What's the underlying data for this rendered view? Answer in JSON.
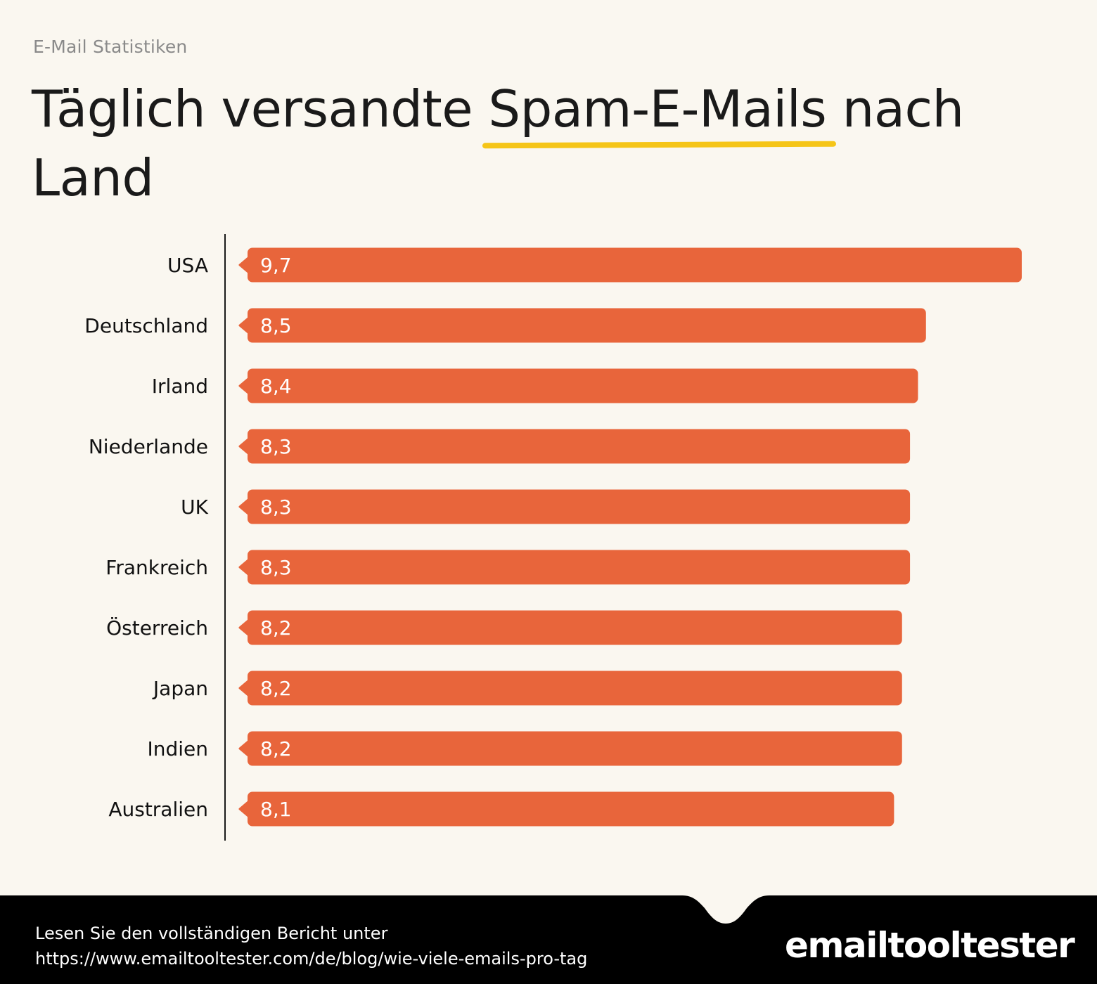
{
  "kicker": "E-Mail Statistiken",
  "title": {
    "before": "Täglich versandte ",
    "highlight": "Spam-E-Mails",
    "after": " nach Land"
  },
  "colors": {
    "background": "#faf7f0",
    "bar": "#e8653b",
    "underline": "#f5c518",
    "footer": "#000000",
    "axis": "#1a1a1a"
  },
  "chart_data": {
    "type": "bar",
    "orientation": "horizontal",
    "title": "Täglich versandte Spam-E-Mails nach Land",
    "xlabel": "",
    "ylabel": "",
    "xlim": [
      0,
      9.7
    ],
    "grid": false,
    "categories": [
      "USA",
      "Deutschland",
      "Irland",
      "Niederlande",
      "UK",
      "Frankreich",
      "Österreich",
      "Japan",
      "Indien",
      "Australien"
    ],
    "values": [
      9.7,
      8.5,
      8.4,
      8.3,
      8.3,
      8.3,
      8.2,
      8.2,
      8.2,
      8.1
    ],
    "value_labels": [
      "9,7",
      "8,5",
      "8,4",
      "8,3",
      "8,3",
      "8,3",
      "8,2",
      "8,2",
      "8,2",
      "8,1"
    ]
  },
  "footer": {
    "line1": "Lesen Sie den vollständigen Bericht unter",
    "line2": "https://www.emailtooltester.com/de/blog/wie-viele-emails-pro-tag",
    "logo": "emailtooltester"
  }
}
